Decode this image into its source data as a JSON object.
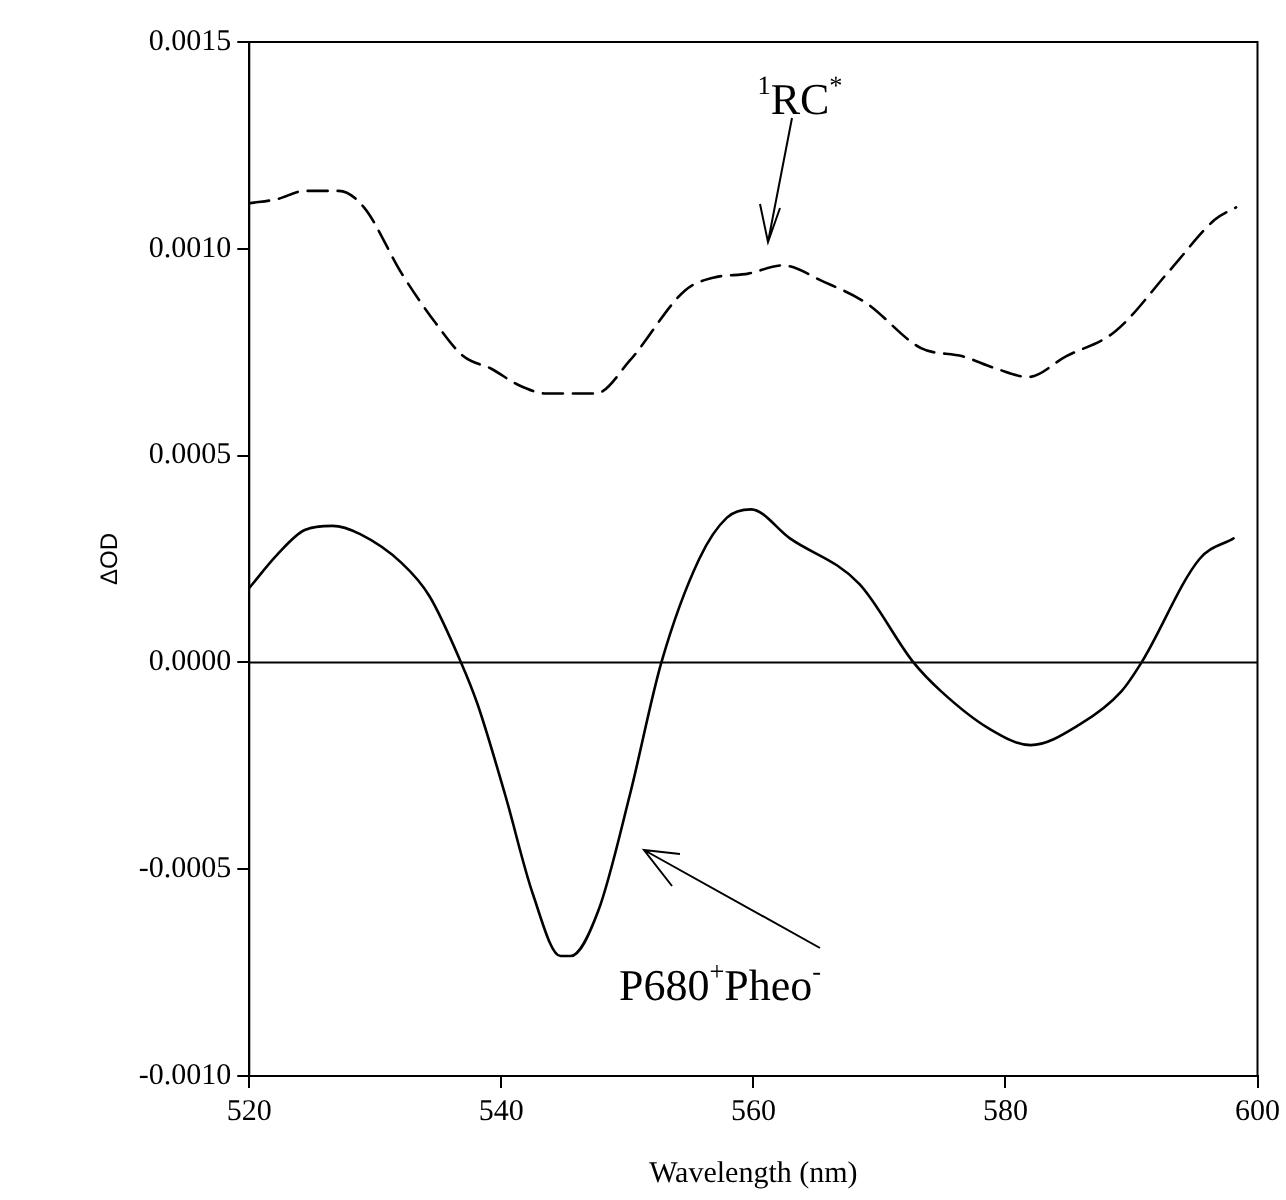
{
  "chart_data": {
    "type": "line",
    "xlabel": "Wavelength (nm)",
    "ylabel": "ΔOD",
    "xlim": [
      520,
      600
    ],
    "xticks": [
      520,
      540,
      560,
      580,
      600
    ],
    "ylim": [
      -0.001,
      0.0015
    ],
    "yticks": [
      {
        "value": -0.001,
        "label": "-0.0010"
      },
      {
        "value": -0.0005,
        "label": "-0.0005"
      },
      {
        "value": 0,
        "label": "0.0000"
      },
      {
        "value": 0.0005,
        "label": "0.0005"
      },
      {
        "value": 0.001,
        "label": "0.0010"
      },
      {
        "value": 0.0015,
        "label": "0.0015"
      }
    ],
    "grid": false,
    "legend": false,
    "marker": "none",
    "series": [
      {
        "color": "#000000",
        "line_style": "dashed",
        "x": [
          520,
          522.2,
          524.4,
          527.1,
          529.1,
          532.1,
          534.8,
          537.0,
          539.2,
          541.4,
          543.6,
          547.5,
          550.2,
          554.6,
          556.8,
          559.6,
          562.3,
          565.6,
          568.9,
          573.3,
          576.6,
          579.3,
          581.8,
          584.8,
          588.7,
          593.1,
          596.6,
          598.3
        ],
        "values": [
          0.00111,
          0.00112,
          0.00114,
          0.00114,
          0.0011,
          0.00094,
          0.00082,
          0.00074,
          0.00071,
          0.00067,
          0.00065,
          0.00065,
          0.00073,
          0.0009,
          0.00093,
          0.00094,
          0.00096,
          0.00092,
          0.00087,
          0.00076,
          0.00074,
          0.00071,
          0.00069,
          0.00074,
          0.0008,
          0.00095,
          0.00107,
          0.0011
        ]
      },
      {
        "color": "#000000",
        "line_style": "solid",
        "x": [
          520,
          522.2,
          524.4,
          526.6,
          528.8,
          532.1,
          534.3,
          536.8,
          538.1,
          540.3,
          542.5,
          544.7,
          545.5,
          547.7,
          550.2,
          552.7,
          555.7,
          557.9,
          559.8,
          562.9,
          568.4,
          572.7,
          574.9,
          578.7,
          582.0,
          585.9,
          589.2,
          590.8,
          595.4,
          598.1
        ],
        "values": [
          0.00018,
          0.00026,
          0.00032,
          0.00033,
          0.00031,
          0.00024,
          0.00016,
          0,
          -0.0001,
          -0.00032,
          -0.00056,
          -0.00071,
          -0.00071,
          -0.0006,
          -0.00032,
          0,
          0.00025,
          0.00035,
          0.00037,
          0.0003,
          0.00019,
          0,
          -7e-05,
          -0.00016,
          -0.0002,
          -0.00015,
          -7e-05,
          0,
          0.00025,
          0.0003
        ]
      }
    ],
    "ref_lines": [
      {
        "axis": "y",
        "value": 0,
        "color": "#000000",
        "line_style": "solid"
      }
    ],
    "annotations": [
      "$^{1}$RC$^{*}$",
      "P680$^{+}$Pheo$^{-}$"
    ]
  }
}
